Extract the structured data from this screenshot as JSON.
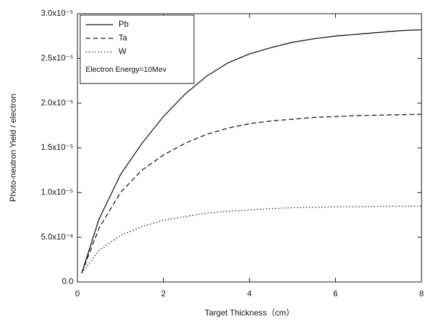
{
  "chart_data": {
    "type": "line",
    "x_label": "Target Thickness（cm）",
    "y_label": "Photo-neutron Yield / electron",
    "annotation": "Electron Energy=10Mev",
    "x": [
      0.1,
      0.5,
      1,
      1.5,
      2,
      2.5,
      3,
      3.5,
      4,
      4.5,
      5,
      5.5,
      6,
      6.5,
      7,
      7.5,
      8
    ],
    "series": [
      {
        "name": "Pb",
        "color": "#111111",
        "dash": "solid",
        "values": [
          1e-06,
          7e-06,
          1.2e-05,
          1.55e-05,
          1.85e-05,
          2.1e-05,
          2.3e-05,
          2.45e-05,
          2.55e-05,
          2.62e-05,
          2.68e-05,
          2.72e-05,
          2.75e-05,
          2.77e-05,
          2.79e-05,
          2.81e-05,
          2.82e-05
        ]
      },
      {
        "name": "Ta",
        "color": "#111111",
        "dash": "dashed",
        "values": [
          1e-06,
          6e-06,
          1e-05,
          1.25e-05,
          1.42e-05,
          1.55e-05,
          1.65e-05,
          1.72e-05,
          1.77e-05,
          1.8e-05,
          1.82e-05,
          1.84e-05,
          1.85e-05,
          1.86e-05,
          1.865e-05,
          1.87e-05,
          1.875e-05
        ]
      },
      {
        "name": "W",
        "color": "#111111",
        "dash": "dotted",
        "values": [
          1e-06,
          3.5e-06,
          5.2e-06,
          6.2e-06,
          6.9e-06,
          7.3e-06,
          7.7e-06,
          7.9e-06,
          8.05e-06,
          8.2e-06,
          8.3e-06,
          8.35e-06,
          8.4e-06,
          8.42e-06,
          8.45e-06,
          8.46e-06,
          8.48e-06
        ]
      }
    ],
    "xlim": [
      0,
      8
    ],
    "xticks": [
      0,
      2,
      4,
      6,
      8
    ],
    "ylim": [
      0,
      3e-05
    ],
    "yticks": [
      {
        "value": 0,
        "label": "0.0"
      },
      {
        "value": 5e-06,
        "label": "5.0x10⁻⁶"
      },
      {
        "value": 1e-05,
        "label": "1.0x10⁻⁵"
      },
      {
        "value": 1.5e-05,
        "label": "1.5x10⁻⁵"
      },
      {
        "value": 2e-05,
        "label": "2.0x10⁻⁵"
      },
      {
        "value": 2.5e-05,
        "label": "2.5x10⁻⁵"
      },
      {
        "value": 3e-05,
        "label": "3.0x10⁻⁵"
      }
    ],
    "grid": false,
    "legend": "top-left"
  }
}
